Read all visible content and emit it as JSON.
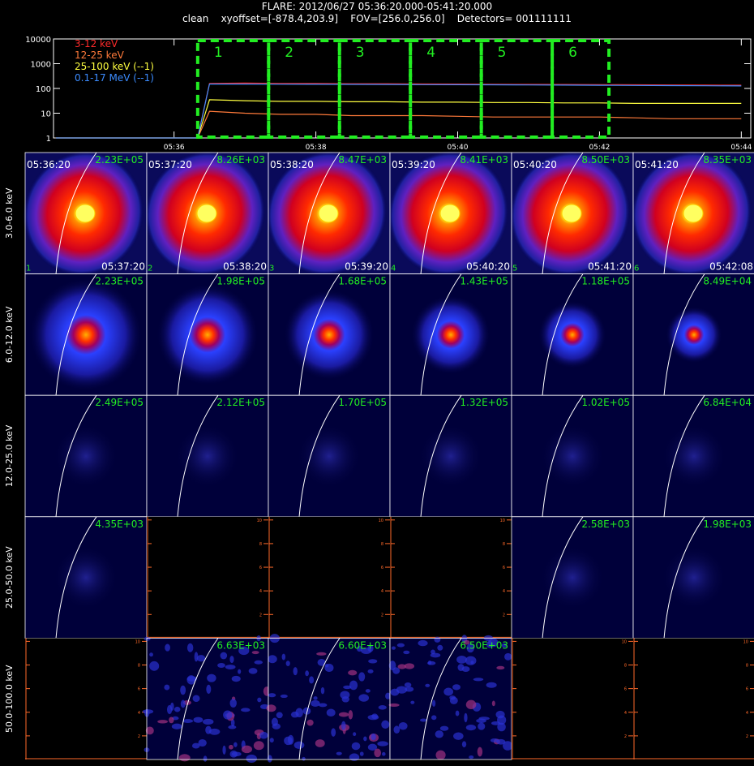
{
  "header": {
    "title": "FLARE: 2012/06/27 05:36:20.000-05:41:20.000",
    "subtitle": "clean    xyoffset=[-878.4,203.9]    FOV=[256.0,256.0]    Detectors= 001111111"
  },
  "lightcurve": {
    "type": "line",
    "log_y": true,
    "ylim": [
      1,
      10000
    ],
    "yticks": [
      1,
      10,
      100,
      1000,
      10000
    ],
    "xlim": [
      "05:34:18",
      "05:44:08"
    ],
    "xticks": [
      "05:36",
      "05:38",
      "05:40",
      "05:42",
      "05:44"
    ],
    "x": [
      "05:34:20",
      "05:35:00",
      "05:35:30",
      "05:36:00",
      "05:36:20",
      "05:36:30",
      "05:37:00",
      "05:37:30",
      "05:38:00",
      "05:38:30",
      "05:39:00",
      "05:39:30",
      "05:40:00",
      "05:40:30",
      "05:41:00",
      "05:41:30",
      "05:42:00",
      "05:42:30",
      "05:43:00",
      "05:43:30",
      "05:44:00"
    ],
    "series": [
      {
        "name": "3-12 keV",
        "color": "#ff2a2a",
        "values": [
          1,
          1,
          1,
          1,
          1,
          160,
          165,
          160,
          158,
          155,
          155,
          152,
          150,
          148,
          146,
          145,
          143,
          140,
          138,
          136,
          135
        ]
      },
      {
        "name": "12-25 keV",
        "color": "#ff7a3a",
        "values": [
          1,
          1,
          1,
          1,
          1,
          12,
          10,
          9,
          9,
          8,
          8,
          8,
          7.5,
          7,
          7,
          7,
          7,
          6.5,
          6,
          6,
          6
        ]
      },
      {
        "name": "25-100 keV (--1)",
        "color": "#ffff40",
        "values": [
          1,
          1,
          1,
          1,
          1,
          35,
          32,
          30,
          30,
          29,
          29,
          28,
          28,
          27,
          27,
          26,
          26,
          25,
          25,
          25,
          25
        ]
      },
      {
        "name": "0.1-17 MeV (--1)",
        "color": "#3c8cff",
        "values": [
          1,
          1,
          1,
          1,
          1,
          150,
          150,
          148,
          147,
          146,
          145,
          143,
          141,
          140,
          138,
          136,
          134,
          132,
          130,
          128,
          126
        ]
      }
    ]
  },
  "columns": [
    {
      "label": "1",
      "start": "05:36:20",
      "end": "05:37:20"
    },
    {
      "label": "2",
      "start": "05:37:20",
      "end": "05:38:20"
    },
    {
      "label": "3",
      "start": "05:38:20",
      "end": "05:39:20"
    },
    {
      "label": "4",
      "start": "05:39:20",
      "end": "05:40:20"
    },
    {
      "label": "5",
      "start": "05:40:20",
      "end": "05:41:20"
    },
    {
      "label": "6",
      "start": "05:41:20",
      "end": "05:42:08"
    }
  ],
  "rows": [
    {
      "energy": "3.0-6.0 keV",
      "peaks": [
        "2.23E+05",
        "8.26E+03",
        "8.47E+03",
        "8.41E+03",
        "8.50E+03",
        "8.35E+03"
      ]
    },
    {
      "energy": "6.0-12.0 keV",
      "peaks": [
        "2.23E+05",
        "1.98E+05",
        "1.68E+05",
        "1.43E+05",
        "1.18E+05",
        "8.49E+04"
      ]
    },
    {
      "energy": "12.0-25.0 keV",
      "peaks": [
        "2.49E+05",
        "2.12E+05",
        "1.70E+05",
        "1.32E+05",
        "1.02E+05",
        "6.84E+04"
      ]
    },
    {
      "energy": "25.0-50.0 keV",
      "peaks": [
        "4.35E+03",
        null,
        null,
        null,
        "2.58E+03",
        "1.98E+03"
      ]
    },
    {
      "energy": "50.0-100.0 keV",
      "peaks": [
        null,
        "6.63E+03",
        "6.60E+03",
        "6.50E+03",
        null,
        null
      ]
    }
  ],
  "empty_panel_ticks": [
    2,
    4,
    6,
    8,
    10
  ]
}
